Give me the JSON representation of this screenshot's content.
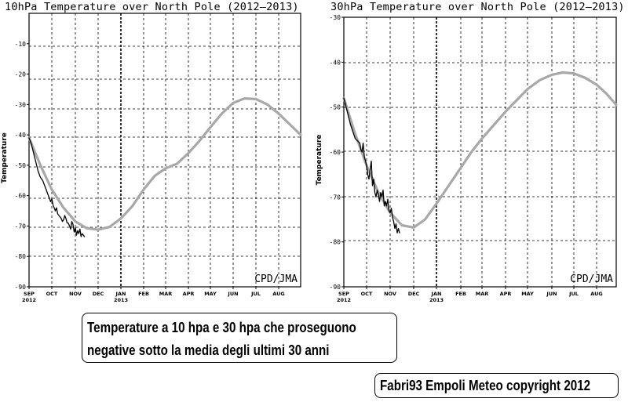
{
  "charts": [
    {
      "title": "10hPa Temperature over North Pole (2012—2013)",
      "ylabel": "Temperature",
      "watermark": "CPD/JMA",
      "yticks": [
        "-10",
        "-20",
        "-30",
        "-40",
        "-50",
        "-60",
        "-70",
        "-80",
        "-90"
      ],
      "xticks": [
        "SEP",
        "OCT",
        "NOV",
        "DEC",
        "JAN",
        "FEB",
        "MAR",
        "APR",
        "MAY",
        "JUN",
        "JUL",
        "AUG"
      ],
      "xyears": [
        "2012",
        "2013"
      ]
    },
    {
      "title": "30hPa Temperature over North Pole (2012—2013)",
      "ylabel": "Temperature",
      "watermark": "CPD/JMA",
      "yticks": [
        "-30",
        "-40",
        "-50",
        "-60",
        "-70",
        "-80",
        "-90"
      ],
      "xticks": [
        "SEP",
        "OCT",
        "NOV",
        "DEC",
        "JAN",
        "FEB",
        "MAR",
        "APR",
        "MAY",
        "JUN",
        "JUL",
        "AUG"
      ],
      "xyears": [
        "2012",
        "2013"
      ]
    }
  ],
  "caption": {
    "line1": "Temperature a 10 hpa e 30 hpa che proseguono",
    "line2": "negative sotto la media degli ultimi 30 anni"
  },
  "credit": "Fabri93 Empoli Meteo copyright 2012",
  "colors": {
    "climatology": "#a8a8a8",
    "observed": "#000000",
    "grid": "#000000"
  },
  "chart_data": [
    {
      "type": "line",
      "title": "10hPa Temperature over North Pole (2012—2013)",
      "ylabel": "Temperature",
      "xlabel": "",
      "ylim": [
        -90,
        0
      ],
      "x_unit": "month",
      "x_ticks": [
        0,
        1,
        2,
        3,
        4,
        5,
        6,
        7,
        8,
        9,
        10,
        11
      ],
      "grid": true,
      "series": [
        {
          "x": [
            0,
            0.5,
            1.0,
            1.5,
            2.0,
            2.5,
            3.0,
            3.5,
            4.0,
            4.5,
            5.0,
            5.5,
            6.0,
            6.5,
            7.0,
            7.5,
            8.0,
            8.5,
            9.0,
            9.5,
            10.0,
            10.5,
            11.0,
            11.5,
            12.0
          ],
          "y": [
            -41,
            -50,
            -58,
            -64,
            -68.5,
            -70.7,
            -71.2,
            -70.3,
            -67.5,
            -63.5,
            -58,
            -53.5,
            -51,
            -49.5,
            -46,
            -42,
            -37.5,
            -33,
            -29.5,
            -28,
            -28.2,
            -30,
            -33,
            -36.5,
            -40
          ]
        },
        {
          "x": [
            0,
            0.1,
            0.2,
            0.3,
            0.4,
            0.5,
            0.6,
            0.7,
            0.75,
            0.8,
            0.85,
            0.9,
            0.95,
            1.0,
            1.05,
            1.1,
            1.15,
            1.2,
            1.25,
            1.3,
            1.35,
            1.4,
            1.45,
            1.5,
            1.55,
            1.6,
            1.65,
            1.7,
            1.75,
            1.8,
            1.85,
            1.9,
            1.95,
            2.0,
            2.05,
            2.1,
            2.15,
            2.2,
            2.25,
            2.3,
            2.35,
            2.4
          ],
          "y": [
            -41,
            -43,
            -46,
            -49,
            -52,
            -54,
            -55,
            -57,
            -58,
            -59,
            -60,
            -61,
            -62,
            -61,
            -63,
            -64,
            -65,
            -64,
            -66,
            -66.5,
            -67,
            -67.5,
            -68.5,
            -68,
            -66.5,
            -67.5,
            -69,
            -69,
            -70,
            -71,
            -68.5,
            -69.5,
            -72,
            -70.5,
            -73,
            -71.5,
            -72.5,
            -71,
            -73.5,
            -72.5,
            -73,
            -73.5
          ]
        }
      ]
    },
    {
      "type": "line",
      "title": "30hPa Temperature over North Pole (2012—2013)",
      "ylabel": "Temperature",
      "xlabel": "",
      "ylim": [
        -90,
        -30
      ],
      "x_unit": "month",
      "x_ticks": [
        0,
        1,
        2,
        3,
        4,
        5,
        6,
        7,
        8,
        9,
        10,
        11
      ],
      "grid": true,
      "series": [
        {
          "x": [
            0,
            0.5,
            1.0,
            1.5,
            2.0,
            2.5,
            3.0,
            3.5,
            4.0,
            4.5,
            5.0,
            5.5,
            6.0,
            6.5,
            7.0,
            7.5,
            8.0,
            8.5,
            9.0,
            9.5,
            10.0,
            10.5,
            11.0,
            11.5,
            12.0
          ],
          "y": [
            -48,
            -56,
            -63,
            -69,
            -73.5,
            -76.3,
            -76.8,
            -75,
            -71.5,
            -67.5,
            -63.5,
            -60,
            -57,
            -54,
            -51,
            -48.5,
            -46,
            -44,
            -42.8,
            -42.3,
            -42.5,
            -43.5,
            -45,
            -47,
            -49.5
          ]
        },
        {
          "x": [
            0,
            0.1,
            0.2,
            0.3,
            0.4,
            0.5,
            0.6,
            0.7,
            0.75,
            0.8,
            0.85,
            0.9,
            0.95,
            1.0,
            1.05,
            1.1,
            1.15,
            1.2,
            1.25,
            1.3,
            1.35,
            1.4,
            1.45,
            1.5,
            1.55,
            1.6,
            1.65,
            1.7,
            1.75,
            1.8,
            1.85,
            1.9,
            1.95,
            2.0,
            2.05,
            2.1,
            2.15,
            2.2,
            2.25,
            2.3,
            2.35,
            2.4
          ],
          "y": [
            -48,
            -50,
            -52,
            -54,
            -55.5,
            -57,
            -57.5,
            -58,
            -59.5,
            -60,
            -58,
            -61,
            -62,
            -63,
            -65,
            -66,
            -64,
            -62,
            -67.5,
            -66,
            -69,
            -70,
            -68.5,
            -69.5,
            -71,
            -69,
            -70,
            -68.5,
            -72,
            -71,
            -72,
            -70.5,
            -73,
            -73.5,
            -72.5,
            -74.5,
            -75.5,
            -77,
            -76,
            -78,
            -77,
            -78
          ]
        }
      ]
    }
  ]
}
